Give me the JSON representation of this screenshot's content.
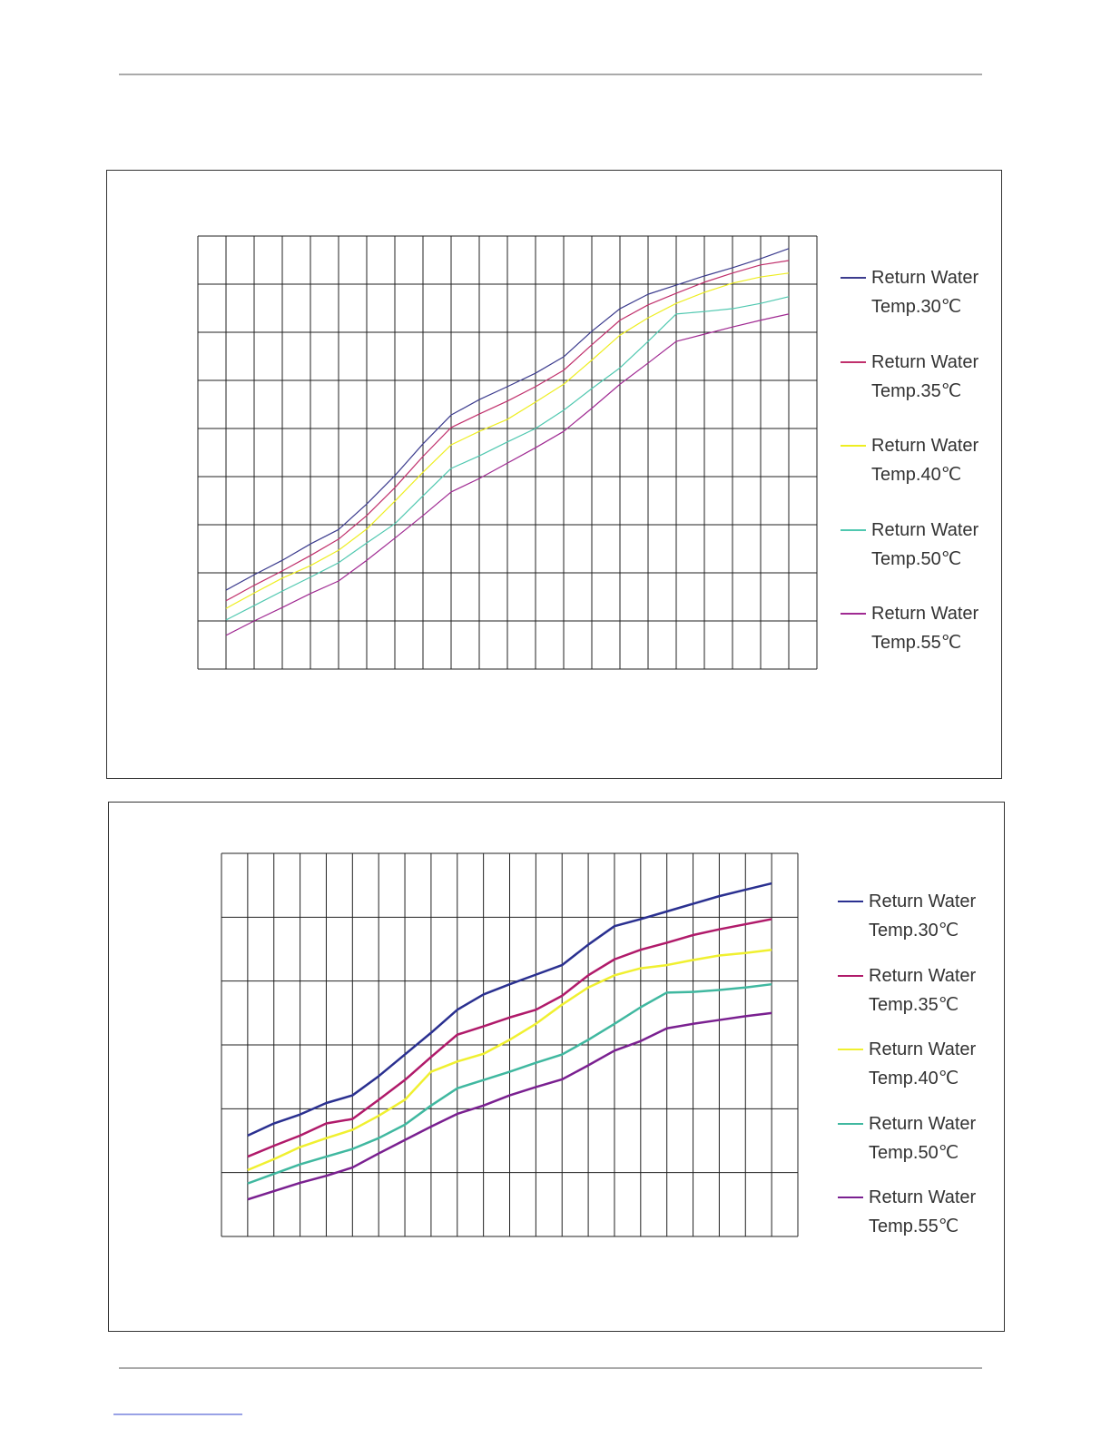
{
  "chart_data": [
    {
      "type": "line",
      "x": [
        1,
        2,
        3,
        4,
        5,
        6,
        7,
        8,
        9,
        10,
        11,
        12,
        13,
        14,
        15,
        16,
        17,
        18,
        19,
        20,
        21
      ],
      "xlim": [
        0,
        22
      ],
      "ylim": [
        0,
        9
      ],
      "xticks": [
        0,
        1,
        2,
        3,
        4,
        5,
        6,
        7,
        8,
        9,
        10,
        11,
        12,
        13,
        14,
        15,
        16,
        17,
        18,
        19,
        20,
        21,
        22
      ],
      "yticks": [
        0,
        1,
        2,
        3,
        4,
        5,
        6,
        7,
        8,
        9
      ],
      "grid": true,
      "series": [
        {
          "name": "Return Water Temp.30℃",
          "color": "#3c3c8e",
          "values": [
            1.64,
            1.96,
            2.26,
            2.6,
            2.9,
            3.43,
            4.02,
            4.68,
            5.28,
            5.6,
            5.87,
            6.15,
            6.49,
            7.02,
            7.49,
            7.79,
            7.98,
            8.17,
            8.34,
            8.53,
            8.74
          ]
        },
        {
          "name": "Return Water Temp.35℃",
          "color": "#c0306c",
          "values": [
            1.42,
            1.74,
            2.04,
            2.36,
            2.7,
            3.19,
            3.77,
            4.42,
            5.02,
            5.3,
            5.57,
            5.87,
            6.21,
            6.74,
            7.25,
            7.57,
            7.81,
            8.04,
            8.23,
            8.4,
            8.49
          ]
        },
        {
          "name": "Return Water Temp.40℃",
          "color": "#eeee22",
          "values": [
            1.26,
            1.58,
            1.89,
            2.15,
            2.47,
            2.91,
            3.49,
            4.09,
            4.66,
            4.94,
            5.19,
            5.55,
            5.92,
            6.42,
            6.94,
            7.3,
            7.6,
            7.83,
            8.02,
            8.15,
            8.23
          ]
        },
        {
          "name": "Return Water Temp.50℃",
          "color": "#50c8b0",
          "values": [
            1.02,
            1.32,
            1.62,
            1.91,
            2.21,
            2.62,
            3.02,
            3.6,
            4.17,
            4.43,
            4.72,
            5.0,
            5.38,
            5.83,
            6.26,
            6.81,
            7.38,
            7.43,
            7.49,
            7.6,
            7.74
          ]
        },
        {
          "name": "Return Water Temp.55℃",
          "color": "#a02a92",
          "values": [
            0.7,
            1.0,
            1.28,
            1.57,
            1.83,
            2.26,
            2.72,
            3.19,
            3.68,
            3.96,
            4.28,
            4.6,
            4.94,
            5.42,
            5.92,
            6.36,
            6.81,
            6.96,
            7.11,
            7.25,
            7.38
          ]
        }
      ]
    },
    {
      "type": "line",
      "x": [
        1,
        2,
        3,
        4,
        5,
        6,
        7,
        8,
        9,
        10,
        11,
        12,
        13,
        14,
        15,
        16,
        17,
        18,
        19,
        20,
        21
      ],
      "xlim": [
        0,
        22
      ],
      "ylim": [
        0,
        6
      ],
      "xticks": [
        0,
        1,
        2,
        3,
        4,
        5,
        6,
        7,
        8,
        9,
        10,
        11,
        12,
        13,
        14,
        15,
        16,
        17,
        18,
        19,
        20,
        21,
        22
      ],
      "yticks": [
        0,
        1,
        2,
        3,
        4,
        5,
        6
      ],
      "grid": true,
      "series": [
        {
          "name": "Return Water Temp.30℃",
          "color": "#2a3090",
          "values": [
            1.58,
            1.77,
            1.91,
            2.09,
            2.21,
            2.51,
            2.85,
            3.19,
            3.55,
            3.79,
            3.95,
            4.1,
            4.25,
            4.57,
            4.86,
            4.97,
            5.09,
            5.21,
            5.33,
            5.43,
            5.53
          ]
        },
        {
          "name": "Return Water Temp.35℃",
          "color": "#b01a6a",
          "values": [
            1.25,
            1.42,
            1.58,
            1.77,
            1.84,
            2.14,
            2.45,
            2.81,
            3.16,
            3.29,
            3.43,
            3.55,
            3.77,
            4.09,
            4.34,
            4.49,
            4.6,
            4.72,
            4.81,
            4.89,
            4.97
          ]
        },
        {
          "name": "Return Water Temp.40℃",
          "color": "#f0f030",
          "values": [
            1.04,
            1.21,
            1.4,
            1.54,
            1.67,
            1.89,
            2.14,
            2.58,
            2.74,
            2.86,
            3.08,
            3.33,
            3.63,
            3.9,
            4.09,
            4.2,
            4.25,
            4.33,
            4.4,
            4.44,
            4.49
          ]
        },
        {
          "name": "Return Water Temp.50℃",
          "color": "#40b8a0",
          "values": [
            0.83,
            0.98,
            1.13,
            1.25,
            1.37,
            1.54,
            1.75,
            2.05,
            2.32,
            2.45,
            2.58,
            2.72,
            2.85,
            3.08,
            3.33,
            3.59,
            3.82,
            3.83,
            3.86,
            3.9,
            3.95
          ]
        },
        {
          "name": "Return Water Temp.55℃",
          "color": "#7a2090",
          "values": [
            0.58,
            0.71,
            0.84,
            0.95,
            1.08,
            1.3,
            1.51,
            1.72,
            1.92,
            2.05,
            2.21,
            2.34,
            2.46,
            2.68,
            2.91,
            3.06,
            3.26,
            3.33,
            3.39,
            3.45,
            3.5
          ]
        }
      ]
    }
  ]
}
